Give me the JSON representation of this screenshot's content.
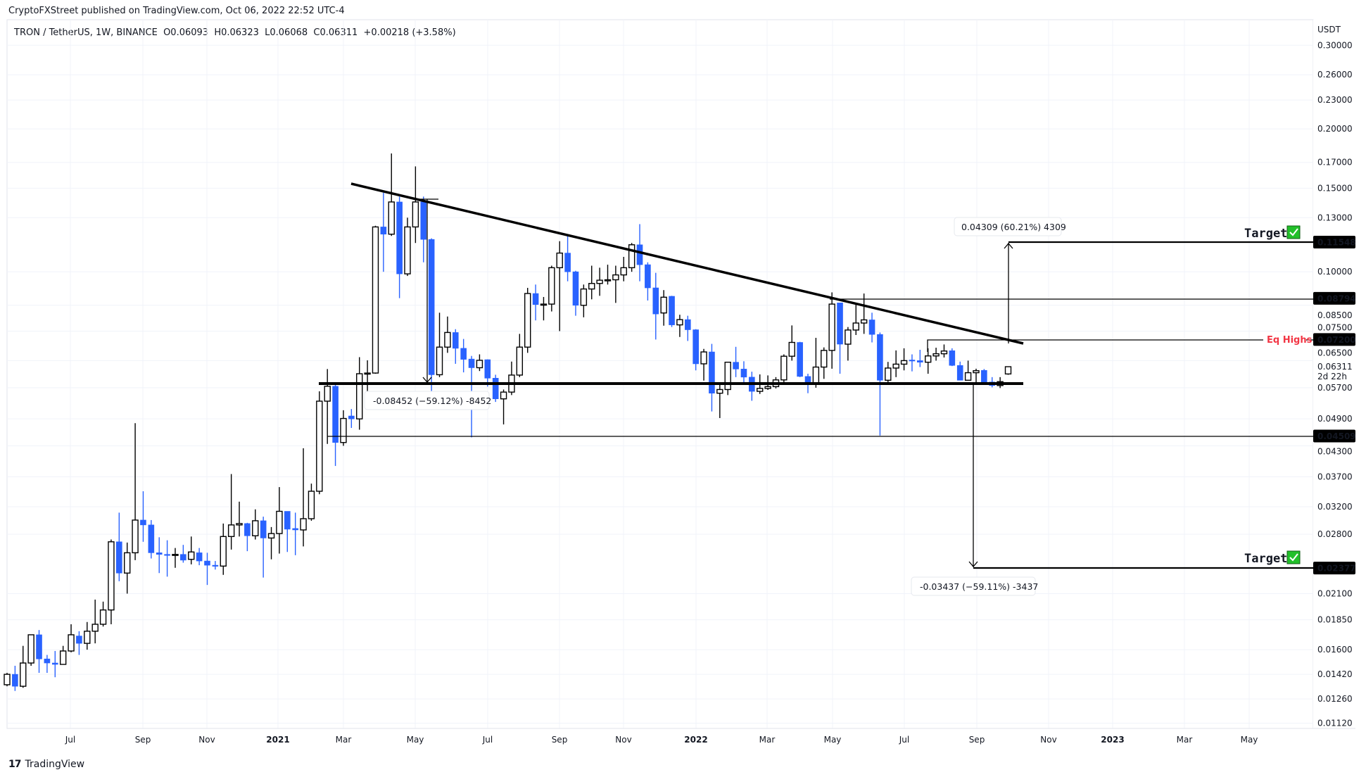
{
  "header": {
    "published": "CryptoFXStreet published on TradingView.com, Oct 06, 2022 22:52 UTC-4",
    "symbol": "TRON / TetherUS, 1W, BINANCE",
    "open": "O0.06093",
    "high": "H0.06323",
    "low": "L0.06068",
    "close": "C0.06311",
    "change": "+0.00218 (+3.58%)"
  },
  "footer": {
    "logo_glyph": "17",
    "brand": "TradingView"
  },
  "chart_data": {
    "type": "candlestick",
    "interval": "1W",
    "currency_label": "USDT",
    "y_scale": "log",
    "ylim": [
      0.0112,
      0.3
    ],
    "grid": true,
    "colors": {
      "up_body": "#ffffff",
      "up_border": "#000000",
      "down": "#2962ff",
      "eq_highs": "#f23645",
      "check": "#22c02a"
    },
    "y_ticks": [
      "0.30000",
      "0.26000",
      "0.23000",
      "0.20000",
      "0.17000",
      "0.15000",
      "0.13000",
      "0.10000",
      "0.08500",
      "0.07500",
      "0.06500",
      "0.05700",
      "0.04900",
      "0.04300",
      "0.03700",
      "0.03200",
      "0.02800",
      "0.02100",
      "0.01850",
      "0.01600",
      "0.01420",
      "0.01260",
      "0.01120"
    ],
    "x_ticks": [
      "Jul",
      "Sep",
      "Nov",
      "2021",
      "Mar",
      "May",
      "Jul",
      "Sep",
      "Nov",
      "2022",
      "Mar",
      "May",
      "Jul",
      "Sep",
      "Nov",
      "2023",
      "Mar",
      "May"
    ],
    "current_price": "0.06311",
    "countdown": "2d 22h",
    "price_labels": [
      "0.11548",
      "0.08794",
      "0.07200",
      "0.04509",
      "0.02377"
    ],
    "eq_highs_label": "Eq Highs",
    "target_label": "Target",
    "measure_top": "0.04309 (60.21%) 4309",
    "measure_drop": "-0.08452 (−59.12%) -8452",
    "measure_bottom": "-0.03437 (−59.11%) -3437",
    "candles_ohlc": [
      [
        0.0135,
        0.0143,
        0.0134,
        0.0142
      ],
      [
        0.0142,
        0.0148,
        0.0131,
        0.0134
      ],
      [
        0.0134,
        0.0163,
        0.0133,
        0.015
      ],
      [
        0.015,
        0.0172,
        0.0148,
        0.0172
      ],
      [
        0.0172,
        0.0176,
        0.0143,
        0.0153
      ],
      [
        0.0153,
        0.0156,
        0.0143,
        0.015
      ],
      [
        0.015,
        0.0159,
        0.014,
        0.0149
      ],
      [
        0.0149,
        0.0163,
        0.0149,
        0.0159
      ],
      [
        0.0159,
        0.0181,
        0.0158,
        0.0172
      ],
      [
        0.0171,
        0.0175,
        0.0156,
        0.0165
      ],
      [
        0.0165,
        0.0183,
        0.016,
        0.0175
      ],
      [
        0.0175,
        0.0204,
        0.0165,
        0.0181
      ],
      [
        0.0181,
        0.0202,
        0.0179,
        0.0194
      ],
      [
        0.0194,
        0.0273,
        0.0181,
        0.027
      ],
      [
        0.027,
        0.0311,
        0.0223,
        0.0232
      ],
      [
        0.0232,
        0.0269,
        0.021,
        0.0256
      ],
      [
        0.0256,
        0.048,
        0.0247,
        0.03
      ],
      [
        0.03,
        0.0345,
        0.027,
        0.0293
      ],
      [
        0.0293,
        0.03,
        0.0249,
        0.0256
      ],
      [
        0.0256,
        0.0276,
        0.0232,
        0.0254
      ],
      [
        0.0254,
        0.0272,
        0.0228,
        0.0253
      ],
      [
        0.0253,
        0.0262,
        0.0238,
        0.0254
      ],
      [
        0.0254,
        0.0266,
        0.0244,
        0.0247
      ],
      [
        0.0248,
        0.0277,
        0.0242,
        0.0257
      ],
      [
        0.0256,
        0.0262,
        0.0241,
        0.0246
      ],
      [
        0.0246,
        0.0256,
        0.0219,
        0.0241
      ],
      [
        0.0241,
        0.0246,
        0.0236,
        0.024
      ],
      [
        0.024,
        0.0295,
        0.023,
        0.0277
      ],
      [
        0.0277,
        0.0375,
        0.026,
        0.0293
      ],
      [
        0.0293,
        0.0328,
        0.0277,
        0.0295
      ],
      [
        0.0295,
        0.0296,
        0.0258,
        0.0278
      ],
      [
        0.0278,
        0.0316,
        0.0273,
        0.0299
      ],
      [
        0.0299,
        0.0305,
        0.0227,
        0.0275
      ],
      [
        0.0275,
        0.029,
        0.0248,
        0.0281
      ],
      [
        0.0281,
        0.0352,
        0.0255,
        0.0313
      ],
      [
        0.0313,
        0.0313,
        0.0257,
        0.0287
      ],
      [
        0.0288,
        0.0311,
        0.0253,
        0.0286
      ],
      [
        0.0286,
        0.0425,
        0.0264,
        0.0302
      ],
      [
        0.0302,
        0.0358,
        0.0299,
        0.0345
      ],
      [
        0.0345,
        0.056,
        0.034,
        0.0534
      ],
      [
        0.0534,
        0.0624,
        0.0434,
        0.0574
      ],
      [
        0.0574,
        0.058,
        0.039,
        0.0437
      ],
      [
        0.0437,
        0.0511,
        0.043,
        0.0491
      ],
      [
        0.0497,
        0.0514,
        0.0469,
        0.049
      ],
      [
        0.049,
        0.0661,
        0.0465,
        0.061
      ],
      [
        0.061,
        0.0651,
        0.054,
        0.0612
      ],
      [
        0.0612,
        0.125,
        0.061,
        0.1243
      ],
      [
        0.1243,
        0.1467,
        0.1,
        0.12
      ],
      [
        0.12,
        0.1775,
        0.119,
        0.1403
      ],
      [
        0.1403,
        0.144,
        0.088,
        0.099
      ],
      [
        0.099,
        0.13,
        0.098,
        0.1243
      ],
      [
        0.1243,
        0.1667,
        0.115,
        0.1403
      ],
      [
        0.1403,
        0.144,
        0.1047,
        0.117
      ],
      [
        0.117,
        0.1176,
        0.054,
        0.0607
      ],
      [
        0.0607,
        0.082,
        0.06,
        0.0694
      ],
      [
        0.0694,
        0.0805,
        0.0675,
        0.0745
      ],
      [
        0.0745,
        0.0757,
        0.064,
        0.069
      ],
      [
        0.069,
        0.0722,
        0.0614,
        0.0654
      ],
      [
        0.0655,
        0.0665,
        0.0448,
        0.0628
      ],
      [
        0.0628,
        0.067,
        0.0618,
        0.0651
      ],
      [
        0.0653,
        0.0654,
        0.0573,
        0.0597
      ],
      [
        0.0597,
        0.0607,
        0.0532,
        0.054
      ],
      [
        0.054,
        0.0565,
        0.0477,
        0.0558
      ],
      [
        0.0558,
        0.0647,
        0.055,
        0.0606
      ],
      [
        0.0606,
        0.074,
        0.06,
        0.0694
      ],
      [
        0.0694,
        0.0925,
        0.0675,
        0.09
      ],
      [
        0.09,
        0.094,
        0.079,
        0.0853
      ],
      [
        0.0853,
        0.0885,
        0.079,
        0.0855
      ],
      [
        0.0855,
        0.103,
        0.0825,
        0.102
      ],
      [
        0.102,
        0.116,
        0.075,
        0.1095
      ],
      [
        0.1095,
        0.12,
        0.0955,
        0.1
      ],
      [
        0.1,
        0.1005,
        0.0808,
        0.085
      ],
      [
        0.085,
        0.094,
        0.0802,
        0.092
      ],
      [
        0.092,
        0.103,
        0.0875,
        0.0945
      ],
      [
        0.0945,
        0.102,
        0.089,
        0.096
      ],
      [
        0.096,
        0.1035,
        0.094,
        0.0962
      ],
      [
        0.0962,
        0.103,
        0.086,
        0.0985
      ],
      [
        0.0985,
        0.1075,
        0.0955,
        0.102
      ],
      [
        0.102,
        0.115,
        0.1,
        0.114
      ],
      [
        0.114,
        0.126,
        0.0955,
        0.1035
      ],
      [
        0.1035,
        0.1047,
        0.087,
        0.0925
      ],
      [
        0.0925,
        0.0995,
        0.072,
        0.0815
      ],
      [
        0.0819,
        0.0915,
        0.077,
        0.0884
      ],
      [
        0.0888,
        0.089,
        0.0765,
        0.0773
      ],
      [
        0.0773,
        0.0812,
        0.0729,
        0.0793
      ],
      [
        0.0793,
        0.0808,
        0.0715,
        0.0755
      ],
      [
        0.0755,
        0.0757,
        0.062,
        0.064
      ],
      [
        0.064,
        0.0688,
        0.059,
        0.0678
      ],
      [
        0.0678,
        0.0705,
        0.0508,
        0.0555
      ],
      [
        0.0555,
        0.0585,
        0.0492,
        0.0565
      ],
      [
        0.0565,
        0.064,
        0.055,
        0.0645
      ],
      [
        0.0645,
        0.0695,
        0.06,
        0.0624
      ],
      [
        0.0624,
        0.0648,
        0.058,
        0.06
      ],
      [
        0.06,
        0.0616,
        0.0535,
        0.056
      ],
      [
        0.056,
        0.0608,
        0.0553,
        0.0568
      ],
      [
        0.0568,
        0.0605,
        0.0564,
        0.0573
      ],
      [
        0.0573,
        0.06,
        0.0568,
        0.0592
      ],
      [
        0.0592,
        0.067,
        0.0585,
        0.0664
      ],
      [
        0.0664,
        0.0771,
        0.065,
        0.071
      ],
      [
        0.071,
        0.0712,
        0.06,
        0.0602
      ],
      [
        0.0602,
        0.061,
        0.0555,
        0.0584
      ],
      [
        0.0584,
        0.0726,
        0.057,
        0.063
      ],
      [
        0.063,
        0.0693,
        0.0595,
        0.0683
      ],
      [
        0.0683,
        0.0905,
        0.0625,
        0.0855
      ],
      [
        0.086,
        0.086,
        0.061,
        0.0704
      ],
      [
        0.0704,
        0.0765,
        0.065,
        0.0754
      ],
      [
        0.0754,
        0.0859,
        0.0736,
        0.078
      ],
      [
        0.078,
        0.09,
        0.074,
        0.0792
      ],
      [
        0.0792,
        0.082,
        0.071,
        0.0738
      ],
      [
        0.0738,
        0.0745,
        0.0452,
        0.0591
      ],
      [
        0.0591,
        0.0646,
        0.0578,
        0.0627
      ],
      [
        0.0627,
        0.0683,
        0.06,
        0.0639
      ],
      [
        0.0639,
        0.069,
        0.062,
        0.065
      ],
      [
        0.0652,
        0.067,
        0.0617,
        0.065
      ],
      [
        0.065,
        0.0685,
        0.063,
        0.0645
      ],
      [
        0.0645,
        0.069,
        0.061,
        0.0665
      ],
      [
        0.0665,
        0.0692,
        0.065,
        0.0672
      ],
      [
        0.0672,
        0.0703,
        0.066,
        0.0681
      ],
      [
        0.0682,
        0.069,
        0.0633,
        0.0635
      ],
      [
        0.0635,
        0.0647,
        0.0591,
        0.0591
      ],
      [
        0.0591,
        0.065,
        0.059,
        0.0613
      ],
      [
        0.0613,
        0.0625,
        0.058,
        0.0619
      ],
      [
        0.062,
        0.0624,
        0.0586,
        0.0586
      ],
      [
        0.0586,
        0.06,
        0.0571,
        0.0576
      ],
      [
        0.0576,
        0.06,
        0.0569,
        0.0587
      ],
      [
        0.06093,
        0.06323,
        0.06068,
        0.06311
      ]
    ]
  }
}
